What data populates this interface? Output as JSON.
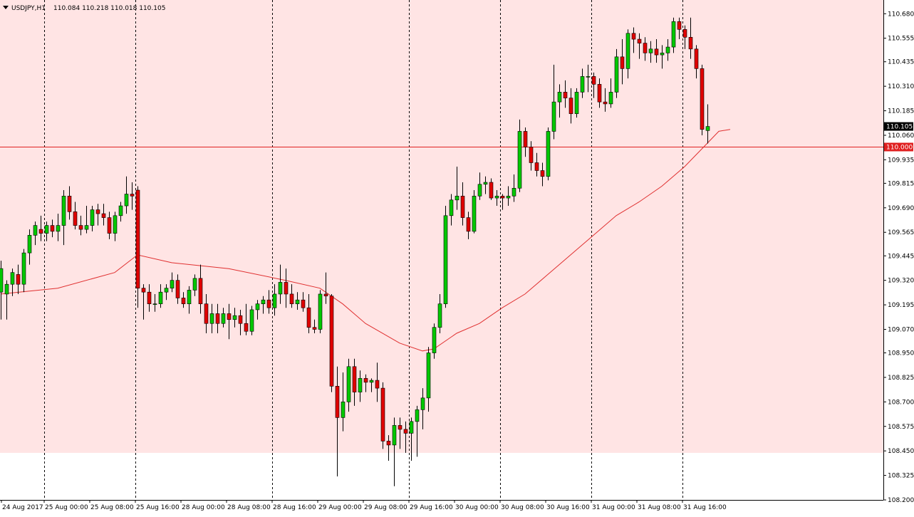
{
  "symbol_header": {
    "symbol": "USDJPY,H1",
    "ohlc": "110.084 110.218 110.018 110.105"
  },
  "colors": {
    "background": "#ffffff",
    "zone": "#ffe4e4",
    "bull": "#00c800",
    "bear": "#e00000",
    "wick": "#000000",
    "ma_line": "#e03030",
    "hline": "#e02020",
    "grid": "#000000"
  },
  "chart_data": {
    "type": "candlestick",
    "symbol": "USDJPY",
    "timeframe": "H1",
    "ylim": [
      108.2,
      110.75
    ],
    "y_ticks": [
      "110.680",
      "110.555",
      "110.435",
      "110.310",
      "110.185",
      "110.060",
      "109.935",
      "109.815",
      "109.690",
      "109.565",
      "109.445",
      "109.320",
      "109.195",
      "109.070",
      "108.950",
      "108.825",
      "108.700",
      "108.575",
      "108.450",
      "108.325",
      "108.200"
    ],
    "x_ticks": [
      "24 Aug 2017",
      "25 Aug 00:00",
      "25 Aug 08:00",
      "25 Aug 16:00",
      "28 Aug 00:00",
      "28 Aug 08:00",
      "28 Aug 16:00",
      "29 Aug 00:00",
      "29 Aug 08:00",
      "29 Aug 16:00",
      "30 Aug 00:00",
      "30 Aug 08:00",
      "30 Aug 16:00",
      "31 Aug 00:00",
      "31 Aug 08:00",
      "31 Aug 16:00"
    ],
    "period_separators": [
      "25 Aug 00:00",
      "25 Aug 16:00",
      "28 Aug 16:00",
      "29 Aug 16:00",
      "30 Aug 08:00",
      "31 Aug 00:00",
      "31 Aug 16:00"
    ],
    "grid": false,
    "horizontal_line": {
      "price": 110.0,
      "label": "110.000"
    },
    "current_price": {
      "price": 110.105,
      "label": "110.105"
    },
    "shaded_zone": {
      "from": 108.44,
      "to": 110.75
    },
    "candles": [
      [
        109.26,
        109.38,
        109.12,
        109.42
      ],
      [
        109.25,
        109.3,
        109.12,
        109.32
      ],
      [
        109.3,
        109.36,
        109.24,
        109.38
      ],
      [
        109.35,
        109.3,
        109.25,
        109.4
      ],
      [
        109.3,
        109.46,
        109.26,
        109.48
      ],
      [
        109.46,
        109.55,
        109.4,
        109.58
      ],
      [
        109.55,
        109.6,
        109.5,
        109.62
      ],
      [
        109.58,
        109.56,
        109.52,
        109.65
      ],
      [
        109.56,
        109.6,
        109.52,
        109.62
      ],
      [
        109.6,
        109.57,
        109.54,
        109.63
      ],
      [
        109.57,
        109.6,
        109.52,
        109.66
      ],
      [
        109.6,
        109.75,
        109.5,
        109.78
      ],
      [
        109.75,
        109.67,
        109.63,
        109.8
      ],
      [
        109.67,
        109.6,
        109.58,
        109.72
      ],
      [
        109.6,
        109.58,
        109.55,
        109.65
      ],
      [
        109.58,
        109.6,
        109.56,
        109.7
      ],
      [
        109.6,
        109.68,
        109.57,
        109.7
      ],
      [
        109.68,
        109.66,
        109.6,
        109.71
      ],
      [
        109.66,
        109.64,
        109.6,
        109.71
      ],
      [
        109.64,
        109.56,
        109.53,
        109.67
      ],
      [
        109.56,
        109.65,
        109.52,
        109.67
      ],
      [
        109.65,
        109.7,
        109.62,
        109.72
      ],
      [
        109.7,
        109.76,
        109.66,
        109.85
      ],
      [
        109.76,
        109.75,
        109.68,
        109.82
      ],
      [
        109.78,
        109.28,
        109.18,
        109.8
      ],
      [
        109.28,
        109.26,
        109.12,
        109.3
      ],
      [
        109.26,
        109.2,
        109.16,
        109.3
      ],
      [
        109.2,
        109.2,
        109.16,
        109.25
      ],
      [
        109.2,
        109.26,
        109.18,
        109.3
      ],
      [
        109.26,
        109.28,
        109.22,
        109.3
      ],
      [
        109.28,
        109.32,
        109.26,
        109.36
      ],
      [
        109.32,
        109.23,
        109.2,
        109.35
      ],
      [
        109.23,
        109.2,
        109.18,
        109.26
      ],
      [
        109.2,
        109.27,
        109.15,
        109.29
      ],
      [
        109.27,
        109.33,
        109.24,
        109.35
      ],
      [
        109.33,
        109.2,
        109.15,
        109.4
      ],
      [
        109.2,
        109.1,
        109.05,
        109.25
      ],
      [
        109.1,
        109.15,
        109.05,
        109.2
      ],
      [
        109.15,
        109.1,
        109.05,
        109.2
      ],
      [
        109.1,
        109.15,
        109.08,
        109.18
      ],
      [
        109.15,
        109.12,
        109.02,
        109.2
      ],
      [
        109.12,
        109.14,
        109.08,
        109.18
      ],
      [
        109.14,
        109.1,
        109.04,
        109.17
      ],
      [
        109.1,
        109.06,
        109.04,
        109.2
      ],
      [
        109.06,
        109.17,
        109.04,
        109.19
      ],
      [
        109.17,
        109.2,
        109.12,
        109.22
      ],
      [
        109.2,
        109.22,
        109.15,
        109.24
      ],
      [
        109.22,
        109.18,
        109.15,
        109.27
      ],
      [
        109.18,
        109.25,
        109.14,
        109.3
      ],
      [
        109.25,
        109.31,
        109.2,
        109.4
      ],
      [
        109.31,
        109.25,
        109.18,
        109.38
      ],
      [
        109.25,
        109.2,
        109.18,
        109.3
      ],
      [
        109.2,
        109.22,
        109.17,
        109.26
      ],
      [
        109.22,
        109.18,
        109.16,
        109.26
      ],
      [
        109.18,
        109.08,
        109.05,
        109.25
      ],
      [
        109.08,
        109.07,
        109.05,
        109.12
      ],
      [
        109.07,
        109.25,
        109.05,
        109.27
      ],
      [
        109.25,
        109.24,
        109.2,
        109.36
      ],
      [
        109.24,
        108.78,
        108.75,
        109.25
      ],
      [
        108.78,
        108.62,
        108.32,
        108.88
      ],
      [
        108.62,
        108.7,
        108.55,
        108.85
      ],
      [
        108.7,
        108.88,
        108.65,
        108.92
      ],
      [
        108.88,
        108.75,
        108.68,
        108.92
      ],
      [
        108.75,
        108.82,
        108.7,
        108.86
      ],
      [
        108.82,
        108.8,
        108.75,
        108.84
      ],
      [
        108.8,
        108.81,
        108.75,
        108.82
      ],
      [
        108.81,
        108.77,
        108.7,
        108.9
      ],
      [
        108.77,
        108.5,
        108.46,
        108.8
      ],
      [
        108.5,
        108.48,
        108.4,
        108.53
      ],
      [
        108.48,
        108.58,
        108.27,
        108.62
      ],
      [
        108.58,
        108.56,
        108.46,
        108.62
      ],
      [
        108.56,
        108.54,
        108.44,
        108.6
      ],
      [
        108.54,
        108.6,
        108.4,
        108.62
      ],
      [
        108.6,
        108.66,
        108.42,
        108.68
      ],
      [
        108.66,
        108.72,
        108.56,
        108.77
      ],
      [
        108.72,
        108.95,
        108.65,
        108.98
      ],
      [
        108.95,
        109.08,
        108.92,
        109.1
      ],
      [
        109.08,
        109.2,
        109.05,
        109.25
      ],
      [
        109.2,
        109.65,
        109.18,
        109.7
      ],
      [
        109.65,
        109.73,
        109.6,
        109.76
      ],
      [
        109.73,
        109.75,
        109.68,
        109.9
      ],
      [
        109.75,
        109.64,
        109.6,
        109.82
      ],
      [
        109.64,
        109.57,
        109.53,
        109.67
      ],
      [
        109.57,
        109.75,
        109.56,
        109.78
      ],
      [
        109.75,
        109.81,
        109.73,
        109.87
      ],
      [
        109.81,
        109.82,
        109.76,
        109.85
      ],
      [
        109.82,
        109.74,
        109.73,
        109.84
      ],
      [
        109.74,
        109.75,
        109.7,
        109.78
      ],
      [
        109.75,
        109.74,
        109.68,
        109.76
      ],
      [
        109.74,
        109.75,
        109.7,
        109.8
      ],
      [
        109.75,
        109.79,
        109.72,
        109.86
      ],
      [
        109.79,
        110.08,
        109.77,
        110.14
      ],
      [
        110.08,
        110.0,
        109.95,
        110.1
      ],
      [
        110.0,
        109.92,
        109.88,
        110.03
      ],
      [
        109.92,
        109.88,
        109.85,
        109.97
      ],
      [
        109.88,
        109.85,
        109.8,
        109.92
      ],
      [
        109.85,
        110.08,
        109.83,
        110.1
      ],
      [
        110.08,
        110.23,
        110.04,
        110.42
      ],
      [
        110.23,
        110.28,
        110.15,
        110.32
      ],
      [
        110.28,
        110.25,
        110.2,
        110.34
      ],
      [
        110.25,
        110.17,
        110.12,
        110.3
      ],
      [
        110.17,
        110.28,
        110.15,
        110.3
      ],
      [
        110.28,
        110.36,
        110.25,
        110.4
      ],
      [
        110.36,
        110.36,
        110.28,
        110.42
      ],
      [
        110.36,
        110.32,
        110.25,
        110.38
      ],
      [
        110.32,
        110.23,
        110.2,
        110.35
      ],
      [
        110.23,
        110.22,
        110.18,
        110.3
      ],
      [
        110.22,
        110.28,
        110.2,
        110.35
      ],
      [
        110.28,
        110.46,
        110.25,
        110.5
      ],
      [
        110.46,
        110.4,
        110.32,
        110.55
      ],
      [
        110.4,
        110.58,
        110.35,
        110.6
      ],
      [
        110.58,
        110.55,
        110.48,
        110.61
      ],
      [
        110.55,
        110.53,
        110.45,
        110.58
      ],
      [
        110.53,
        110.48,
        110.44,
        110.56
      ],
      [
        110.48,
        110.5,
        110.43,
        110.54
      ],
      [
        110.5,
        110.47,
        110.43,
        110.55
      ],
      [
        110.47,
        110.48,
        110.4,
        110.52
      ],
      [
        110.48,
        110.51,
        110.44,
        110.55
      ],
      [
        110.51,
        110.64,
        110.48,
        110.66
      ],
      [
        110.64,
        110.6,
        110.55,
        110.66
      ],
      [
        110.6,
        110.56,
        110.5,
        110.62
      ],
      [
        110.56,
        110.5,
        110.45,
        110.66
      ],
      [
        110.5,
        110.4,
        110.35,
        110.52
      ],
      [
        110.4,
        110.09,
        110.06,
        110.42
      ],
      [
        110.084,
        110.105,
        110.018,
        110.218
      ]
    ],
    "moving_average": [
      [
        0,
        109.25
      ],
      [
        10,
        109.28
      ],
      [
        20,
        109.36
      ],
      [
        24,
        109.45
      ],
      [
        30,
        109.41
      ],
      [
        40,
        109.38
      ],
      [
        50,
        109.32
      ],
      [
        56,
        109.28
      ],
      [
        60,
        109.2
      ],
      [
        64,
        109.1
      ],
      [
        70,
        109.0
      ],
      [
        74,
        108.96
      ],
      [
        76,
        108.97
      ],
      [
        80,
        109.05
      ],
      [
        84,
        109.1
      ],
      [
        88,
        109.18
      ],
      [
        92,
        109.25
      ],
      [
        96,
        109.35
      ],
      [
        100,
        109.45
      ],
      [
        104,
        109.55
      ],
      [
        108,
        109.65
      ],
      [
        112,
        109.72
      ],
      [
        116,
        109.8
      ],
      [
        120,
        109.9
      ],
      [
        124,
        110.02
      ],
      [
        126,
        110.08
      ],
      [
        128,
        110.09
      ]
    ]
  }
}
